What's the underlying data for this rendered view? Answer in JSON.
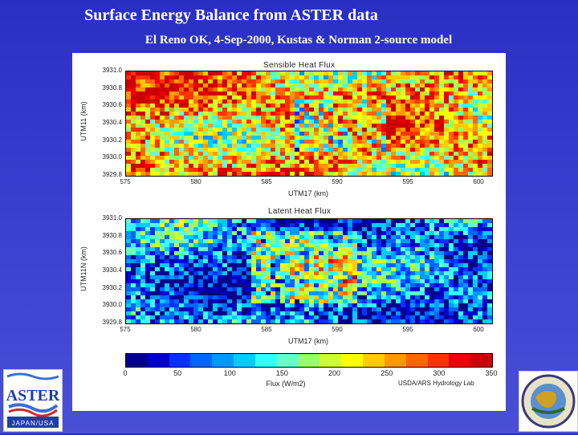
{
  "title": "Surface Energy Balance from ASTER data",
  "subtitle": "El Reno OK, 4-Sep-2000, Kustas & Norman 2-source model",
  "panels": [
    {
      "title": "Sensible Heat Flux",
      "ylabel": "UTM11 (km)",
      "xlabel": "UTM17 (km)",
      "yticks": [
        "3931.0",
        "3930.8",
        "3930.6",
        "3930.4",
        "3930.2",
        "3930.0",
        "3929.8"
      ],
      "xticks": [
        "575",
        "580",
        "585",
        "590",
        "595",
        "600"
      ]
    },
    {
      "title": "Latent Heat Flux",
      "ylabel": "UTM11N (km)",
      "xlabel": "UTM17 (km)",
      "yticks": [
        "3931.0",
        "3930.8",
        "3930.6",
        "3930.4",
        "3930.2",
        "3930.0",
        "3929.8"
      ],
      "xticks": [
        "575",
        "580",
        "585",
        "590",
        "595",
        "600"
      ]
    }
  ],
  "colorbar": {
    "ticks": [
      "0",
      "50",
      "100",
      "150",
      "200",
      "250",
      "300",
      "350"
    ],
    "label": "Flux (W/m2)",
    "credit": "USDA/ARS Hydrology Lab",
    "colors": [
      "#00008b",
      "#0000cd",
      "#0033ff",
      "#0066ff",
      "#0099ff",
      "#00ccff",
      "#33ffff",
      "#66ffcc",
      "#99ff66",
      "#ccff33",
      "#ffff00",
      "#ffcc00",
      "#ff9900",
      "#ff6600",
      "#ff3300",
      "#ee0000",
      "#cc0000"
    ]
  },
  "logos": {
    "aster": "ASTER JAPAN/USA"
  },
  "chart_data": {
    "type": "heatmap",
    "panels": [
      "Sensible Heat Flux",
      "Latent Heat Flux"
    ],
    "x_range": [
      575,
      602
    ],
    "y_range": [
      3929.8,
      3931.0
    ],
    "color_range": [
      0,
      350
    ],
    "color_label": "Flux (W/m2)"
  }
}
